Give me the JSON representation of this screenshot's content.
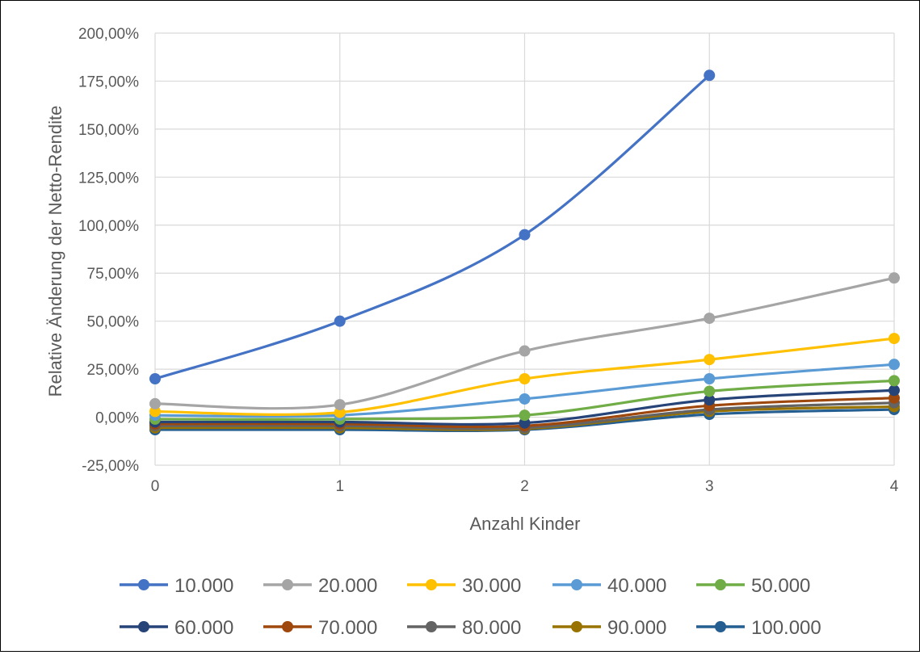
{
  "chart_data": {
    "type": "line",
    "title": "",
    "xlabel": "Anzahl Kinder",
    "ylabel": "Relative Änderung der Netto-Rendite",
    "x": [
      0,
      1,
      2,
      3,
      4
    ],
    "x_tick_labels": [
      "0",
      "1",
      "2",
      "3",
      "4"
    ],
    "ylim": [
      -25,
      200
    ],
    "y_ticks": [
      -25,
      0,
      25,
      50,
      75,
      100,
      125,
      150,
      175,
      200
    ],
    "y_tick_labels": [
      "-25,00%",
      "0,00%",
      "25,00%",
      "50,00%",
      "75,00%",
      "100,00%",
      "125,00%",
      "150,00%",
      "175,00%",
      "200,00%"
    ],
    "grid": true,
    "smooth": true,
    "legend_position": "bottom",
    "series": [
      {
        "name": "10.000",
        "color": "#4472C4",
        "values": [
          20,
          50,
          95,
          178,
          null
        ]
      },
      {
        "name": "20.000",
        "color": "#A5A5A5",
        "values": [
          7,
          6.5,
          34.5,
          51.5,
          72.5
        ]
      },
      {
        "name": "30.000",
        "color": "#FFC000",
        "values": [
          3,
          2.5,
          20,
          30,
          41
        ]
      },
      {
        "name": "40.000",
        "color": "#5B9BD5",
        "values": [
          1,
          1,
          9.5,
          20,
          27.5
        ]
      },
      {
        "name": "50.000",
        "color": "#70AD47",
        "values": [
          -1,
          -1,
          1,
          13.5,
          19
        ]
      },
      {
        "name": "60.000",
        "color": "#264478",
        "values": [
          -2.5,
          -2.5,
          -3,
          9,
          14
        ]
      },
      {
        "name": "70.000",
        "color": "#9E480E",
        "values": [
          -3.5,
          -3.5,
          -4.5,
          6,
          10
        ]
      },
      {
        "name": "80.000",
        "color": "#636363",
        "values": [
          -4.5,
          -4.5,
          -5.5,
          4,
          7.5
        ]
      },
      {
        "name": "90.000",
        "color": "#997300",
        "values": [
          -5.5,
          -5.5,
          -6,
          3,
          5.5
        ]
      },
      {
        "name": "100.000",
        "color": "#255E91",
        "values": [
          -6.5,
          -6.5,
          -6.5,
          1.5,
          4
        ]
      }
    ]
  }
}
